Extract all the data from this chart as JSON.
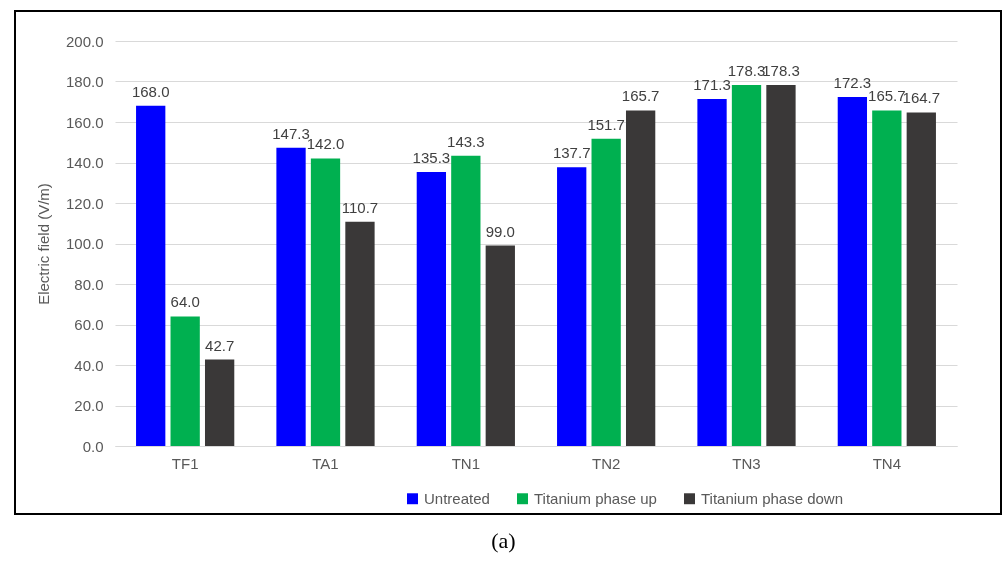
{
  "chart_data": {
    "type": "bar",
    "ylabel": "Electric field (V/m)",
    "categories": [
      "TF1",
      "TA1",
      "TN1",
      "TN2",
      "TN3",
      "TN4",
      null
    ],
    "series": [
      {
        "name": "Untreated",
        "color": "#0000ff",
        "values": [
          168.0,
          147.3,
          135.3,
          137.7,
          171.3,
          172.3,
          null
        ],
        "value_labels": [
          "168.0",
          "147.3",
          "135.3",
          "137.7",
          "171.3",
          "172.3",
          null
        ]
      },
      {
        "name": "Titanium phase up",
        "color": "#00b050",
        "values": [
          64.0,
          142.0,
          143.3,
          151.7,
          178.3,
          165.7,
          null
        ],
        "value_labels": [
          "64.0",
          "142.0",
          "143.3",
          "151.7",
          "178.3",
          "165.7",
          null
        ]
      },
      {
        "name": "Titanium phase down",
        "color": "#3a3838",
        "values": [
          42.7,
          110.7,
          99.0,
          165.7,
          178.3,
          164.7,
          null
        ],
        "value_labels": [
          "42.7",
          "110.7",
          "99.0",
          "165.7",
          "178.3",
          "164.7",
          null
        ]
      }
    ],
    "ylim": [
      0,
      200
    ],
    "yticks": [
      {
        "value": 0,
        "label": "0.0"
      },
      {
        "value": 20,
        "label": "20.0"
      },
      {
        "value": 40,
        "label": "40.0"
      },
      {
        "value": 60,
        "label": "60.0"
      },
      {
        "value": 80,
        "label": "80.0"
      },
      {
        "value": 100,
        "label": "100.0"
      },
      {
        "value": 120,
        "label": "120.0"
      },
      {
        "value": 140,
        "label": "140.0"
      },
      {
        "value": 160,
        "label": "160.0"
      },
      {
        "value": 180,
        "label": "180.0"
      },
      {
        "value": 200,
        "label": "200.0"
      }
    ],
    "grid": "y",
    "legend": "bottom",
    "annotations": [
      "(a)"
    ]
  }
}
